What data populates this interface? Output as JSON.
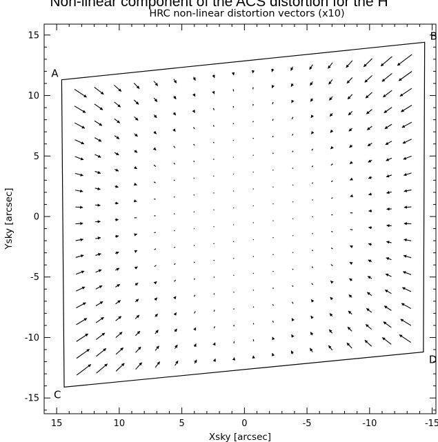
{
  "banner_text": "Non-linear component of the ACS distortion for the H",
  "chart_data": {
    "type": "quiver",
    "title": "HRC non-linear distortion vectors (x10)",
    "xlabel": "Xsky [arcsec]",
    "ylabel": "Ysky [arcsec]",
    "xlim": [
      16,
      -15.3
    ],
    "ylim": [
      -16.3,
      15.9
    ],
    "x_ticks": [
      15,
      10,
      5,
      0,
      -5,
      -10,
      -15
    ],
    "y_ticks": [
      15,
      10,
      5,
      0,
      -5,
      -10,
      -15
    ],
    "grid": false,
    "corners": [
      {
        "label": "A",
        "x": 14.6,
        "y": 11.3
      },
      {
        "label": "B",
        "x": -14.4,
        "y": 14.4
      },
      {
        "label": "C",
        "x": 14.4,
        "y": -14.1
      },
      {
        "label": "D",
        "x": -14.3,
        "y": -11.2
      }
    ],
    "field": {
      "columns": 18,
      "rows": 18,
      "scale_factor": 10,
      "center": {
        "x": 0.0,
        "y": 0.0
      }
    }
  }
}
